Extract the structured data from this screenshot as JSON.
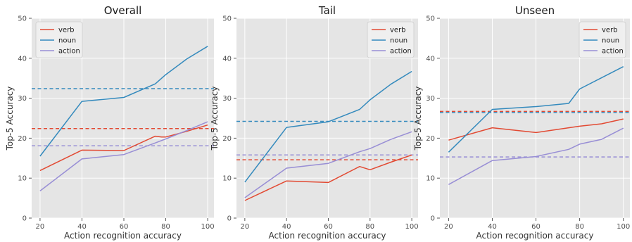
{
  "chart_data": [
    {
      "type": "line",
      "title": "Overall",
      "xlabel": "Action recognition accuracy",
      "ylabel": "Top-5 Accuracy",
      "xlim": [
        16,
        103
      ],
      "ylim": [
        0,
        50
      ],
      "xticks": [
        20,
        40,
        60,
        80,
        100
      ],
      "yticks": [
        0,
        10,
        20,
        30,
        40,
        50
      ],
      "grid": true,
      "legend_position": "top-left",
      "series": [
        {
          "name": "verb",
          "color": "#E24A33",
          "x": [
            20,
            40,
            60,
            75,
            78,
            80,
            90,
            100
          ],
          "y": [
            11.9,
            17.0,
            16.9,
            20.5,
            20.3,
            20.3,
            21.7,
            23.3
          ]
        },
        {
          "name": "noun",
          "color": "#348ABD",
          "x": [
            20,
            40,
            60,
            75,
            80,
            90,
            100
          ],
          "y": [
            15.5,
            29.2,
            30.2,
            33.6,
            35.9,
            39.8,
            43.0
          ]
        },
        {
          "name": "action",
          "color": "#988ED5",
          "x": [
            20,
            40,
            60,
            75,
            80,
            90,
            100
          ],
          "y": [
            6.8,
            14.8,
            15.9,
            18.8,
            19.8,
            21.9,
            24.1
          ]
        }
      ],
      "baselines": [
        {
          "series": "noun",
          "color": "#348ABD",
          "y": 32.4
        },
        {
          "series": "verb",
          "color": "#E24A33",
          "y": 22.4
        },
        {
          "series": "action",
          "color": "#988ED5",
          "y": 18.1
        }
      ]
    },
    {
      "type": "line",
      "title": "Tail",
      "xlabel": "Action recognition accuracy",
      "ylabel": "Top-5 Accuracy",
      "xlim": [
        16,
        103
      ],
      "ylim": [
        0,
        50
      ],
      "xticks": [
        20,
        40,
        60,
        80,
        100
      ],
      "yticks": [
        0,
        10,
        20,
        30,
        40,
        50
      ],
      "grid": true,
      "legend_position": "top-right",
      "series": [
        {
          "name": "verb",
          "color": "#E24A33",
          "x": [
            20,
            40,
            60,
            75,
            80,
            90,
            100
          ],
          "y": [
            4.4,
            9.3,
            8.9,
            12.9,
            12.1,
            14.0,
            15.8
          ]
        },
        {
          "name": "noun",
          "color": "#348ABD",
          "x": [
            20,
            40,
            60,
            75,
            80,
            90,
            100
          ],
          "y": [
            9.0,
            22.7,
            24.1,
            27.2,
            29.6,
            33.5,
            36.7
          ]
        },
        {
          "name": "action",
          "color": "#988ED5",
          "x": [
            20,
            40,
            60,
            75,
            80,
            90,
            100
          ],
          "y": [
            5.1,
            12.5,
            13.7,
            16.6,
            17.4,
            19.7,
            21.6
          ]
        }
      ],
      "baselines": [
        {
          "series": "noun",
          "color": "#348ABD",
          "y": 24.2
        },
        {
          "series": "action",
          "color": "#988ED5",
          "y": 15.8
        },
        {
          "series": "verb",
          "color": "#E24A33",
          "y": 14.6
        }
      ]
    },
    {
      "type": "line",
      "title": "Unseen",
      "xlabel": "Action recognition accuracy",
      "ylabel": "Top-5 Accuracy",
      "xlim": [
        16,
        103
      ],
      "ylim": [
        0,
        50
      ],
      "xticks": [
        20,
        40,
        60,
        80,
        100
      ],
      "yticks": [
        0,
        10,
        20,
        30,
        40,
        50
      ],
      "grid": true,
      "legend_position": "top-right",
      "series": [
        {
          "name": "verb",
          "color": "#E24A33",
          "x": [
            20,
            40,
            60,
            75,
            80,
            90,
            100
          ],
          "y": [
            19.5,
            22.6,
            21.4,
            22.6,
            23.0,
            23.6,
            24.8
          ]
        },
        {
          "name": "noun",
          "color": "#348ABD",
          "x": [
            20,
            40,
            60,
            75,
            80,
            90,
            100
          ],
          "y": [
            16.5,
            27.2,
            27.9,
            28.7,
            32.3,
            35.1,
            37.9
          ]
        },
        {
          "name": "action",
          "color": "#988ED5",
          "x": [
            20,
            40,
            60,
            75,
            80,
            90,
            100
          ],
          "y": [
            8.4,
            14.4,
            15.4,
            17.2,
            18.5,
            19.7,
            22.5
          ]
        }
      ],
      "baselines": [
        {
          "series": "verb",
          "color": "#E24A33",
          "y": 26.7
        },
        {
          "series": "noun",
          "color": "#348ABD",
          "y": 26.4
        },
        {
          "series": "action",
          "color": "#988ED5",
          "y": 15.3
        }
      ]
    }
  ],
  "colors": {
    "panel_background": "#E5E5E5",
    "grid": "#FFFFFF"
  }
}
